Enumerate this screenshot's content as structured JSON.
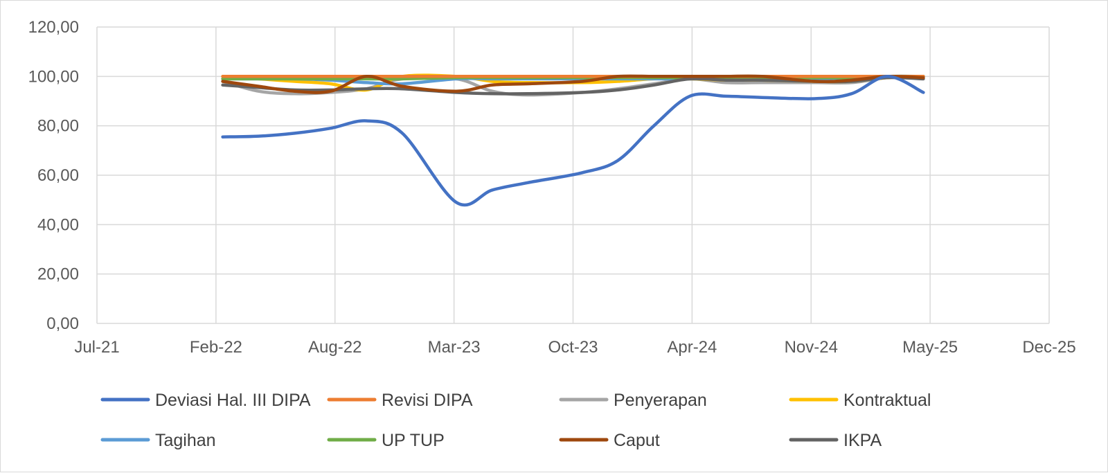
{
  "chart_data": {
    "type": "line",
    "title": "",
    "xlabel": "",
    "ylabel": "",
    "x_ticks": [
      "Jul-21",
      "Feb-22",
      "Aug-22",
      "Mar-23",
      "Oct-23",
      "Apr-24",
      "Nov-24",
      "May-25",
      "Dec-25"
    ],
    "x_range": [
      "2021-07",
      "2025-12"
    ],
    "y_ticks": [
      "0,00",
      "20,00",
      "40,00",
      "60,00",
      "80,00",
      "100,00",
      "120,00"
    ],
    "ylim": [
      0,
      120
    ],
    "grid": true,
    "legend_position": "bottom",
    "x": [
      "2022-02",
      "2022-04",
      "2022-06",
      "2022-08",
      "2022-10",
      "2022-12",
      "2023-03",
      "2023-05",
      "2023-07",
      "2023-10",
      "2023-12",
      "2024-02",
      "2024-04",
      "2024-06",
      "2024-08",
      "2024-11",
      "2025-01",
      "2025-03",
      "2025-05"
    ],
    "series": [
      {
        "name": "Deviasi Hal. III DIPA",
        "color": "#4472C4",
        "values": [
          75.5,
          75.8,
          77,
          79,
          82,
          77,
          49,
          54,
          57,
          61,
          66,
          80,
          92,
          92,
          91.5,
          91,
          93,
          100,
          93.5
        ]
      },
      {
        "name": "Revisi DIPA",
        "color": "#ED7D31",
        "values": [
          100,
          100,
          100,
          100,
          100,
          100,
          100,
          100,
          100,
          100,
          100,
          100,
          100,
          100,
          100,
          100,
          100,
          100,
          100
        ]
      },
      {
        "name": "Penyerapan",
        "color": "#A5A5A5",
        "values": [
          98,
          94,
          93,
          93.5,
          95,
          99,
          99,
          94,
          92.5,
          93.5,
          95,
          97,
          99,
          97.5,
          97.5,
          97.5,
          97.5,
          99.5,
          100
        ]
      },
      {
        "name": "Kontraktual",
        "color": "#FFC000",
        "values": [
          100,
          99,
          98,
          97,
          94.5,
          100,
          100,
          98,
          97.5,
          97.5,
          98,
          99,
          99,
          98.5,
          98.5,
          98,
          98,
          99.5,
          100
        ]
      },
      {
        "name": "Tagihan",
        "color": "#5B9BD5",
        "values": [
          99,
          99,
          99,
          98.5,
          97.5,
          97,
          99,
          99,
          99,
          99,
          99,
          99,
          99,
          99,
          99,
          99,
          99.5,
          100,
          100
        ]
      },
      {
        "name": "UP TUP",
        "color": "#70AD47",
        "values": [
          99,
          99,
          99,
          99,
          99,
          99,
          99.5,
          99.5,
          99.5,
          99.5,
          99.5,
          99.5,
          99.5,
          99.5,
          99.5,
          99.5,
          99.5,
          100,
          100
        ]
      },
      {
        "name": "Caput",
        "color": "#9E480E",
        "values": [
          98,
          96,
          94,
          94,
          100,
          96,
          94,
          96.5,
          97,
          98,
          100,
          100,
          100,
          100,
          100,
          98,
          98.5,
          100,
          99.5
        ]
      },
      {
        "name": "IKPA",
        "color": "#636363",
        "values": [
          96.5,
          95.5,
          94.5,
          94.5,
          95,
          95,
          93.5,
          93,
          93,
          93.5,
          94.5,
          96.5,
          99,
          98.5,
          98.5,
          98,
          98,
          99.5,
          99
        ]
      }
    ]
  }
}
